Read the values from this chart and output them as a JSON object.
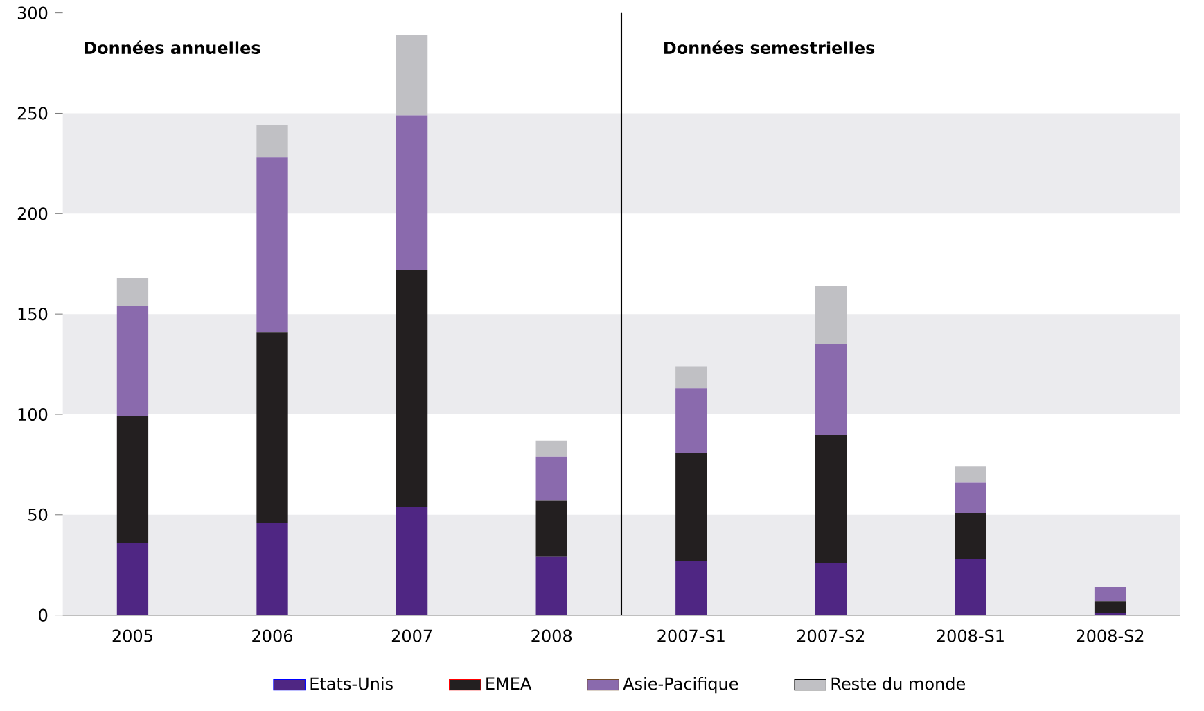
{
  "chart_data": {
    "type": "bar",
    "stacked": true,
    "categories": [
      "2005",
      "2006",
      "2007",
      "2008",
      "2007-S1",
      "2007-S2",
      "2008-S1",
      "2008-S2"
    ],
    "series": [
      {
        "name": "Etats-Unis",
        "color": "#4f2683",
        "values": [
          36,
          46,
          54,
          29,
          27,
          26,
          28,
          1
        ]
      },
      {
        "name": "EMEA",
        "color": "#231f20",
        "values": [
          63,
          95,
          118,
          28,
          54,
          64,
          23,
          6
        ]
      },
      {
        "name": "Asie-Pacifique",
        "color": "#8a6aad",
        "values": [
          55,
          87,
          77,
          22,
          32,
          45,
          15,
          7
        ]
      },
      {
        "name": "Reste du monde",
        "color": "#c0c0c4",
        "values": [
          14,
          16,
          40,
          8,
          11,
          29,
          8,
          0
        ]
      }
    ],
    "ylim": [
      0,
      300
    ],
    "yticks": [
      0,
      50,
      100,
      150,
      200,
      250,
      300
    ],
    "bands": [
      {
        "axis": "y",
        "from": 0,
        "to": 50,
        "color": "#ebebee"
      },
      {
        "axis": "y",
        "from": 100,
        "to": 150,
        "color": "#ebebee"
      },
      {
        "axis": "y",
        "from": 200,
        "to": 250,
        "color": "#ebebee"
      }
    ],
    "annotations": [
      "Données annuelles",
      "Données semestrielles"
    ],
    "legend": "bottom",
    "grid": false
  }
}
